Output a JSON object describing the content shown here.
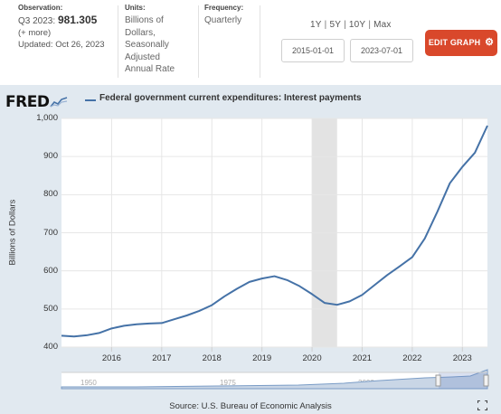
{
  "info": {
    "observation_label": "Observation:",
    "observation_period": "Q3 2023:",
    "observation_value": "981.305",
    "more": "(+ more)",
    "updated": "Updated: Oct 26, 2023",
    "units_label": "Units:",
    "units_lines": [
      "Billions of",
      "Dollars,",
      "Seasonally",
      "Adjusted",
      "Annual Rate"
    ],
    "frequency_label": "Frequency:",
    "frequency_value": "Quarterly"
  },
  "range_links": [
    "1Y",
    "5Y",
    "10Y",
    "Max"
  ],
  "date_start": "2015-01-01",
  "date_end": "2023-07-01",
  "edit_button": "EDIT GRAPH",
  "brand": "FRED",
  "source": "Source: U.S. Bureau of Economic Analysis",
  "colors": {
    "series": "#4572a7",
    "button": "#d9482b",
    "panel": "#e1e9f0",
    "recession": "#e3e3e3"
  },
  "navigator": {
    "labels": [
      "1950",
      "1975",
      "2000"
    ]
  },
  "chart_data": {
    "type": "line",
    "title": "Federal government current expenditures: Interest payments",
    "ylabel": "Billions of Dollars",
    "ylim": [
      400,
      1000
    ],
    "yticks": [
      "400",
      "500",
      "600",
      "700",
      "800",
      "900",
      "1,000"
    ],
    "xticks": [
      "2016",
      "2017",
      "2018",
      "2019",
      "2020",
      "2021",
      "2022",
      "2023"
    ],
    "grid": true,
    "recession": [
      "2020-Q1",
      "2020-Q2"
    ],
    "series": [
      {
        "x": [
          "2015-Q1",
          "2015-Q2",
          "2015-Q3",
          "2015-Q4",
          "2016-Q1",
          "2016-Q2",
          "2016-Q3",
          "2016-Q4",
          "2017-Q1",
          "2017-Q2",
          "2017-Q3",
          "2017-Q4",
          "2018-Q1",
          "2018-Q2",
          "2018-Q3",
          "2018-Q4",
          "2019-Q1",
          "2019-Q2",
          "2019-Q3",
          "2019-Q4",
          "2020-Q1",
          "2020-Q2",
          "2020-Q3",
          "2020-Q4",
          "2021-Q1",
          "2021-Q2",
          "2021-Q3",
          "2021-Q4",
          "2022-Q1",
          "2022-Q2",
          "2022-Q3",
          "2022-Q4",
          "2023-Q1",
          "2023-Q2",
          "2023-Q3"
        ],
        "values": [
          430,
          428,
          431,
          437,
          449,
          456,
          460,
          462,
          463,
          473,
          483,
          495,
          510,
          533,
          553,
          571,
          580,
          586,
          576,
          560,
          539,
          516,
          511,
          520,
          537,
          563,
          589,
          612,
          636,
          685,
          755,
          830,
          873,
          910,
          981
        ]
      }
    ]
  }
}
